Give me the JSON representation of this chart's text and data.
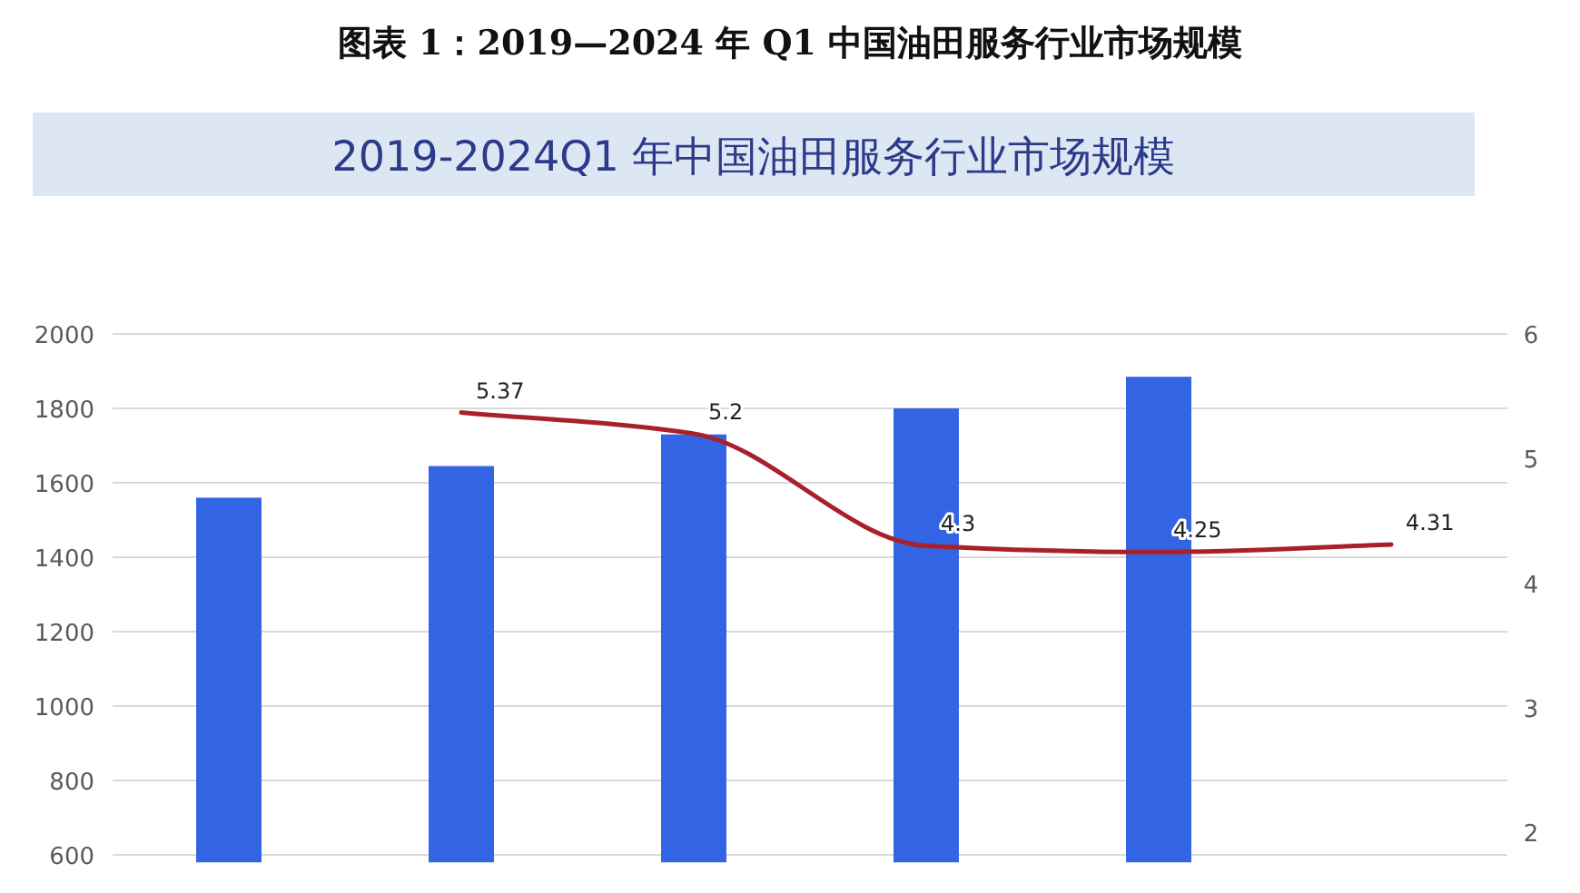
{
  "chart_data": {
    "type": "bar",
    "title": "图表 1：2019—2024 年 Q1 中国油田服务行业市场规模",
    "subtitle": "2019-2024Q1 年中国油田服务行业市场规模",
    "categories": [
      null,
      null,
      null,
      null,
      null,
      null
    ],
    "series": [
      {
        "color": "#3264e4",
        "values": [
          1560,
          1645,
          1730,
          1800,
          1885,
          null
        ]
      },
      {
        "type": "line",
        "axis": "y2",
        "color": "#a8202a",
        "values": [
          null,
          5.37,
          5.2,
          4.3,
          4.25,
          4.31
        ],
        "value_labels": [
          null,
          "5.37",
          "5.2",
          "4.3",
          "4.25",
          "4.31"
        ]
      }
    ],
    "ylim": [
      580,
      2000
    ],
    "yticks": [
      600,
      800,
      1000,
      1200,
      1400,
      1600,
      1800,
      2000
    ],
    "y2lim": [
      1.76,
      6
    ],
    "y2ticks": [
      2,
      3,
      4,
      5,
      6
    ],
    "grid": "y",
    "marker": "none",
    "line_style": "solid"
  }
}
